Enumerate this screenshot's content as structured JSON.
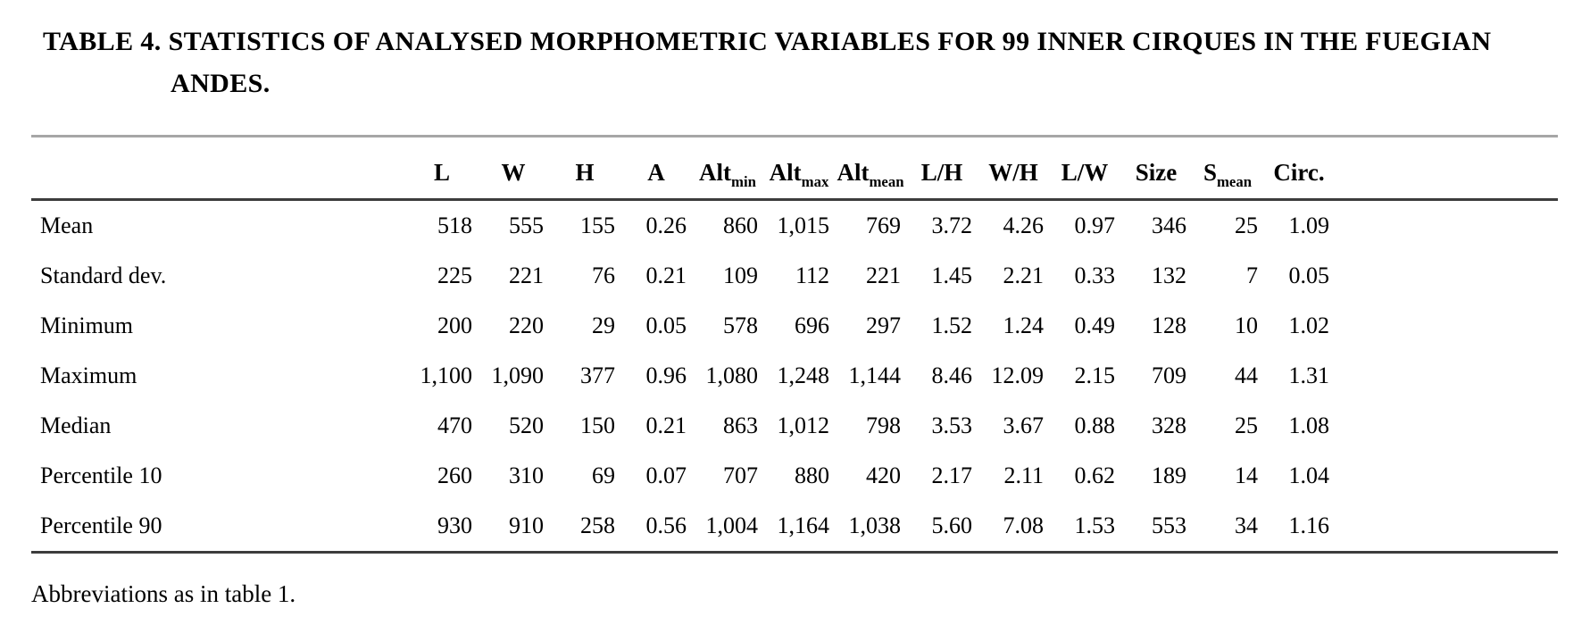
{
  "page": {
    "title": "TABLE 4. STATISTICS OF ANALYSED MORPHOMETRIC VARIABLES FOR 99 INNER CIRQUES IN THE FUEGIAN ANDES.",
    "footnote": "Abbreviations as in table 1."
  },
  "table": {
    "headers": [
      {
        "base": "",
        "sub": ""
      },
      {
        "base": "L",
        "sub": ""
      },
      {
        "base": "W",
        "sub": ""
      },
      {
        "base": "H",
        "sub": ""
      },
      {
        "base": "A",
        "sub": ""
      },
      {
        "base": "Alt",
        "sub": "min"
      },
      {
        "base": "Alt",
        "sub": "max"
      },
      {
        "base": "Alt",
        "sub": "mean"
      },
      {
        "base": "L/H",
        "sub": ""
      },
      {
        "base": "W/H",
        "sub": ""
      },
      {
        "base": "L/W",
        "sub": ""
      },
      {
        "base": "Size",
        "sub": ""
      },
      {
        "base": "S",
        "sub": "mean"
      },
      {
        "base": "Circ.",
        "sub": ""
      }
    ],
    "rows": [
      {
        "label": "Mean",
        "values": [
          "518",
          "555",
          "155",
          "0.26",
          "860",
          "1,015",
          "769",
          "3.72",
          "4.26",
          "0.97",
          "346",
          "25",
          "1.09"
        ]
      },
      {
        "label": "Standard dev.",
        "values": [
          "225",
          "221",
          "76",
          "0.21",
          "109",
          "112",
          "221",
          "1.45",
          "2.21",
          "0.33",
          "132",
          "7",
          "0.05"
        ]
      },
      {
        "label": "Minimum",
        "values": [
          "200",
          "220",
          "29",
          "0.05",
          "578",
          "696",
          "297",
          "1.52",
          "1.24",
          "0.49",
          "128",
          "10",
          "1.02"
        ]
      },
      {
        "label": "Maximum",
        "values": [
          "1,100",
          "1,090",
          "377",
          "0.96",
          "1,080",
          "1,248",
          "1,144",
          "8.46",
          "12.09",
          "2.15",
          "709",
          "44",
          "1.31"
        ]
      },
      {
        "label": "Median",
        "values": [
          "470",
          "520",
          "150",
          "0.21",
          "863",
          "1,012",
          "798",
          "3.53",
          "3.67",
          "0.88",
          "328",
          "25",
          "1.08"
        ]
      },
      {
        "label": "Percentile 10",
        "values": [
          "260",
          "310",
          "69",
          "0.07",
          "707",
          "880",
          "420",
          "2.17",
          "2.11",
          "0.62",
          "189",
          "14",
          "1.04"
        ]
      },
      {
        "label": "Percentile 90",
        "values": [
          "930",
          "910",
          "258",
          "0.56",
          "1,004",
          "1,164",
          "1,038",
          "5.60",
          "7.08",
          "1.53",
          "553",
          "34",
          "1.16"
        ]
      }
    ]
  }
}
